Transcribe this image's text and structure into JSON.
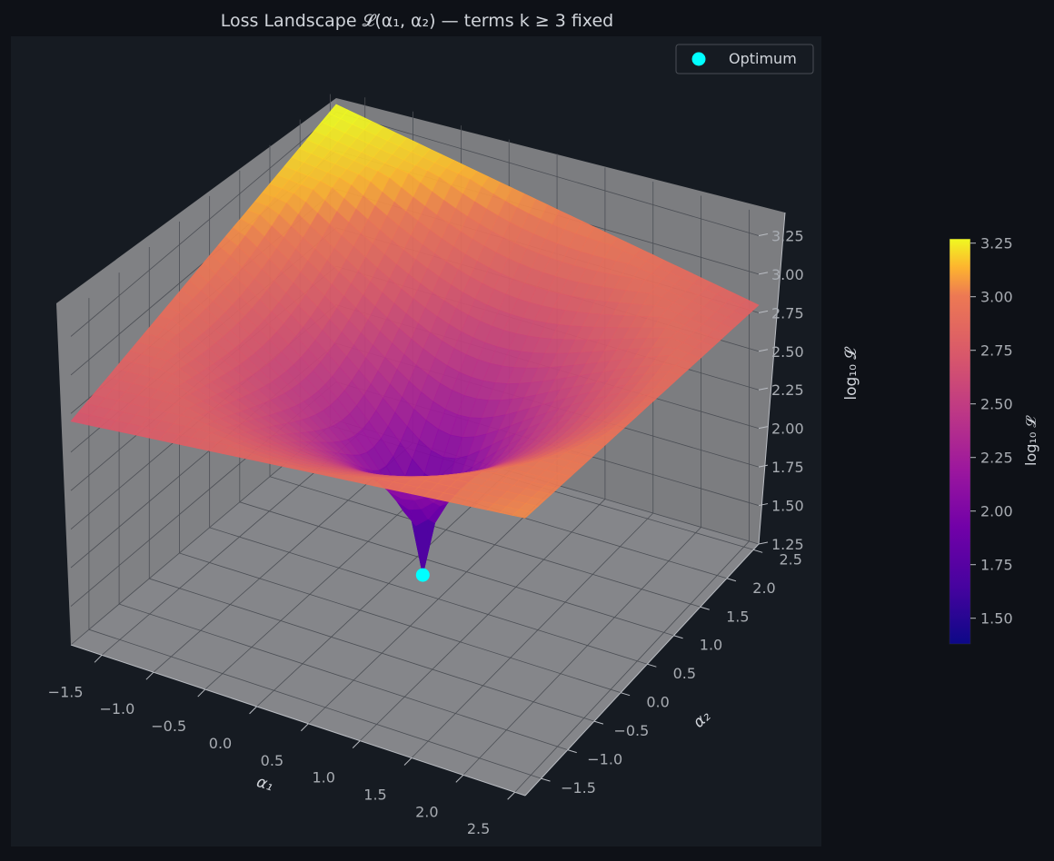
{
  "chart_data": {
    "type": "surface",
    "title": "Loss Landscape 𝓛(α₁, α₂) — terms k ≥ 3 fixed",
    "xlabel": "α₁",
    "ylabel": "α₂",
    "zlabel": "log₁₀ 𝓛",
    "xlim": [
      -1.8,
      2.6
    ],
    "ylim": [
      -1.8,
      2.6
    ],
    "zlim": [
      1.25,
      3.4
    ],
    "xticks": [
      "−1.5",
      "−1.0",
      "−0.5",
      "0.0",
      "0.5",
      "1.0",
      "1.5",
      "2.0",
      "2.5"
    ],
    "yticks": [
      "−1.5",
      "−1.0",
      "−0.5",
      "0.0",
      "0.5",
      "1.0",
      "1.5",
      "2.0",
      "2.5"
    ],
    "zticks": [
      "1.25",
      "1.50",
      "1.75",
      "2.00",
      "2.25",
      "2.50",
      "2.75",
      "3.00",
      "3.25"
    ],
    "optimum": {
      "x": 0.4,
      "y": 0.4,
      "z": 1.42
    },
    "corner_values": {
      "x_min_y_min": 2.7,
      "x_max_y_min": 3.05,
      "x_min_y_max": 3.3,
      "x_max_y_max": 2.8
    },
    "legend": {
      "position": "top-right",
      "entries": [
        "Optimum"
      ]
    },
    "colorbar": {
      "label": "log₁₀ 𝓛",
      "ticks": [
        "1.50",
        "1.75",
        "2.00",
        "2.25",
        "2.50",
        "2.75",
        "3.00",
        "3.25"
      ],
      "range": [
        1.38,
        3.27
      ],
      "colormap": "plasma"
    },
    "grid": true,
    "colors": {
      "figure_bg": "#0e1117",
      "axes_bg": "#161b22",
      "pane": "#7d7f84",
      "optimum": "#00ffff",
      "text": "#d0d4da",
      "tick_text": "#a8acb2"
    }
  }
}
